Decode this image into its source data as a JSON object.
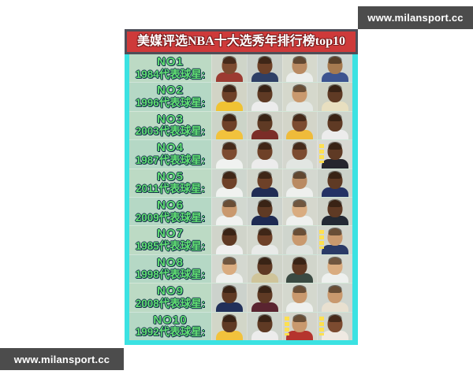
{
  "watermark": {
    "text": "www.milansport.cc"
  },
  "poster": {
    "title": "美媒评选NBA十大选秀年排行榜top10",
    "rows": [
      {
        "rank": "NO1",
        "label": "1984代表球星:",
        "photos": [
          {
            "bg": "#cfd5c9",
            "skin": "#7c4b30",
            "jersey": "#9c3b32"
          },
          {
            "bg": "#c9cfc9",
            "skin": "#6e4128",
            "jersey": "#2e3f66"
          },
          {
            "bg": "#d6d9cd",
            "skin": "#b98a62",
            "jersey": "#eceeec"
          },
          {
            "bg": "#ced6d2",
            "skin": "#a57a50",
            "jersey": "#3c5490"
          }
        ]
      },
      {
        "rank": "NO2",
        "label": "1996代表球星:",
        "photos": [
          {
            "bg": "#d2d4c6",
            "skin": "#6e4128",
            "jersey": "#f0c233"
          },
          {
            "bg": "#cdd3cb",
            "skin": "#5f3a24",
            "jersey": "#ececec"
          },
          {
            "bg": "#d5d8cc",
            "skin": "#c9996e",
            "jersey": "#e4e8e4"
          },
          {
            "bg": "#cfd2c4",
            "skin": "#5f3a24",
            "jersey": "#e8dfc0"
          }
        ]
      },
      {
        "rank": "NO3",
        "label": "2003代表球星:",
        "photos": [
          {
            "bg": "#ccd4c8",
            "skin": "#6e4128",
            "jersey": "#f2c23c"
          },
          {
            "bg": "#d0d2c8",
            "skin": "#5f3a24",
            "jersey": "#7b2d28"
          },
          {
            "bg": "#d3d5c9",
            "skin": "#7c4b30",
            "jersey": "#efbb3a"
          },
          {
            "bg": "#ced4cc",
            "skin": "#5f3a24",
            "jersey": "#ececec"
          }
        ]
      },
      {
        "rank": "NO4",
        "label": "1987代表球星:",
        "photos": [
          {
            "bg": "#d2d7cf",
            "skin": "#7c4b30",
            "jersey": "#f0f2f0"
          },
          {
            "bg": "#cfd5cd",
            "skin": "#6e4128",
            "jersey": "#ececec"
          },
          {
            "bg": "#d4d6ce",
            "skin": "#7c4b30",
            "jersey": "#e2e6e2"
          },
          {
            "bg": "#d8d8d2",
            "skin": "#5f3a24",
            "jersey": "#26262e",
            "mark": true
          }
        ]
      },
      {
        "rank": "NO5",
        "label": "2011代表球星:",
        "photos": [
          {
            "bg": "#ced6ce",
            "skin": "#6e4128",
            "jersey": "#f0f2f0"
          },
          {
            "bg": "#d1d5cb",
            "skin": "#6e4128",
            "jersey": "#202c54"
          },
          {
            "bg": "#d4d8d0",
            "skin": "#b98a62",
            "jersey": "#eef0ee"
          },
          {
            "bg": "#ccd2ca",
            "skin": "#5f3a24",
            "jersey": "#243264"
          }
        ]
      },
      {
        "rank": "NO6",
        "label": "2009代表球星:",
        "photos": [
          {
            "bg": "#d2d8d0",
            "skin": "#c9996e",
            "jersey": "#f0f2f0"
          },
          {
            "bg": "#cdd3cd",
            "skin": "#5f3a24",
            "jersey": "#1e2a52"
          },
          {
            "bg": "#d5d7cd",
            "skin": "#d9ac80",
            "jersey": "#eef0ee"
          },
          {
            "bg": "#ced2c8",
            "skin": "#5f3a24",
            "jersey": "#232933"
          }
        ]
      },
      {
        "rank": "NO7",
        "label": "1985代表球星:",
        "photos": [
          {
            "bg": "#d0d4ca",
            "skin": "#5f3a24",
            "jersey": "#f0f0f0"
          },
          {
            "bg": "#d3d7cd",
            "skin": "#6e4128",
            "jersey": "#e8eae8"
          },
          {
            "bg": "#cfd5cd",
            "skin": "#c9996e",
            "jersey": "#dfe3df"
          },
          {
            "bg": "#d2d6ce",
            "skin": "#c9996e",
            "jersey": "#2a3a66",
            "mark": true
          }
        ]
      },
      {
        "rank": "NO8",
        "label": "1998代表球星:",
        "photos": [
          {
            "bg": "#d4d8d0",
            "skin": "#d9ac80",
            "jersey": "#eef0ee"
          },
          {
            "bg": "#cfd3c9",
            "skin": "#5f3a24",
            "jersey": "#cfc49a"
          },
          {
            "bg": "#d1d5cb",
            "skin": "#5f3a24",
            "jersey": "#3a4a42"
          },
          {
            "bg": "#d5d9d1",
            "skin": "#d9ac80",
            "jersey": "#eef0ee"
          }
        ]
      },
      {
        "rank": "NO9",
        "label": "2008代表球星:",
        "photos": [
          {
            "bg": "#ccd2cc",
            "skin": "#5f3a24",
            "jersey": "#22305a"
          },
          {
            "bg": "#d2d4ca",
            "skin": "#5f3a24",
            "jersey": "#5a2430"
          },
          {
            "bg": "#d4d8ce",
            "skin": "#c9996e",
            "jersey": "#eef0ee"
          },
          {
            "bg": "#cfd5cf",
            "skin": "#c9996e",
            "jersey": "#e8e0d0"
          }
        ]
      },
      {
        "rank": "NO10",
        "label": "1992代表球星:",
        "photos": [
          {
            "bg": "#d2d6c8",
            "skin": "#5f3a24",
            "jersey": "#f2c23c"
          },
          {
            "bg": "#ced4cc",
            "skin": "#5f3a24",
            "jersey": "#ececec"
          },
          {
            "bg": "#d4d4ca",
            "skin": "#c9996e",
            "jersey": "#b5342e",
            "mark": true
          },
          {
            "bg": "#d0d6ce",
            "skin": "#7c4b30",
            "jersey": "#efe9e2",
            "mark": true
          }
        ]
      }
    ]
  },
  "colors": {
    "title_bg": "#ce3a3a",
    "title_border": "#4e4e58",
    "border_cyan": "#3be2e2",
    "card_bg": "#bcdac4",
    "label_green": "#62df72",
    "watermark_bar": "#4c4c4c"
  }
}
